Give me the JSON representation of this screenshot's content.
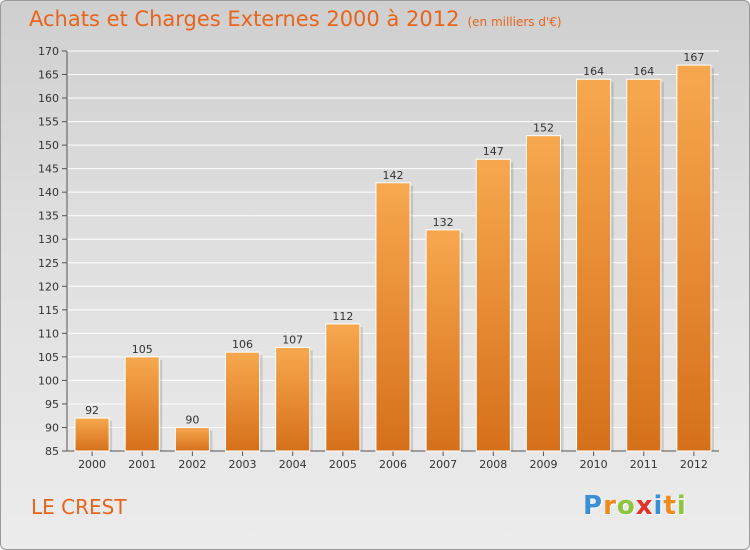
{
  "title": "Achats et Charges Externes 2000 à 2012",
  "subtitle": "(en milliers d'€)",
  "place": "LE CREST",
  "logo": {
    "letters": [
      "P",
      "r",
      "o",
      "x",
      "i",
      "t",
      "i"
    ],
    "colors": [
      "#3a8fd6",
      "#f08a1c",
      "#8cc63e",
      "#e2332a",
      "#3a8fd6",
      "#f08a1c",
      "#8cc63e"
    ]
  },
  "colors": {
    "bar_light": "#f7a84f",
    "bar_dark": "#d6701a",
    "grid": "#ffffff",
    "text": "#333333",
    "title": "#e8641b"
  },
  "chart_data": {
    "type": "bar",
    "title": "Achats et Charges Externes 2000 à 2012",
    "subtitle": "(en milliers d'€)",
    "categories": [
      "2000",
      "2001",
      "2002",
      "2003",
      "2004",
      "2005",
      "2006",
      "2007",
      "2008",
      "2009",
      "2010",
      "2011",
      "2012"
    ],
    "values": [
      92,
      105,
      90,
      106,
      107,
      112,
      142,
      132,
      147,
      152,
      164,
      164,
      167
    ],
    "ylim": [
      85,
      170
    ],
    "yticks": [
      85,
      90,
      95,
      100,
      105,
      110,
      115,
      120,
      125,
      130,
      135,
      140,
      145,
      150,
      155,
      160,
      165,
      170
    ],
    "grid": true,
    "xlabel": "",
    "ylabel": ""
  }
}
